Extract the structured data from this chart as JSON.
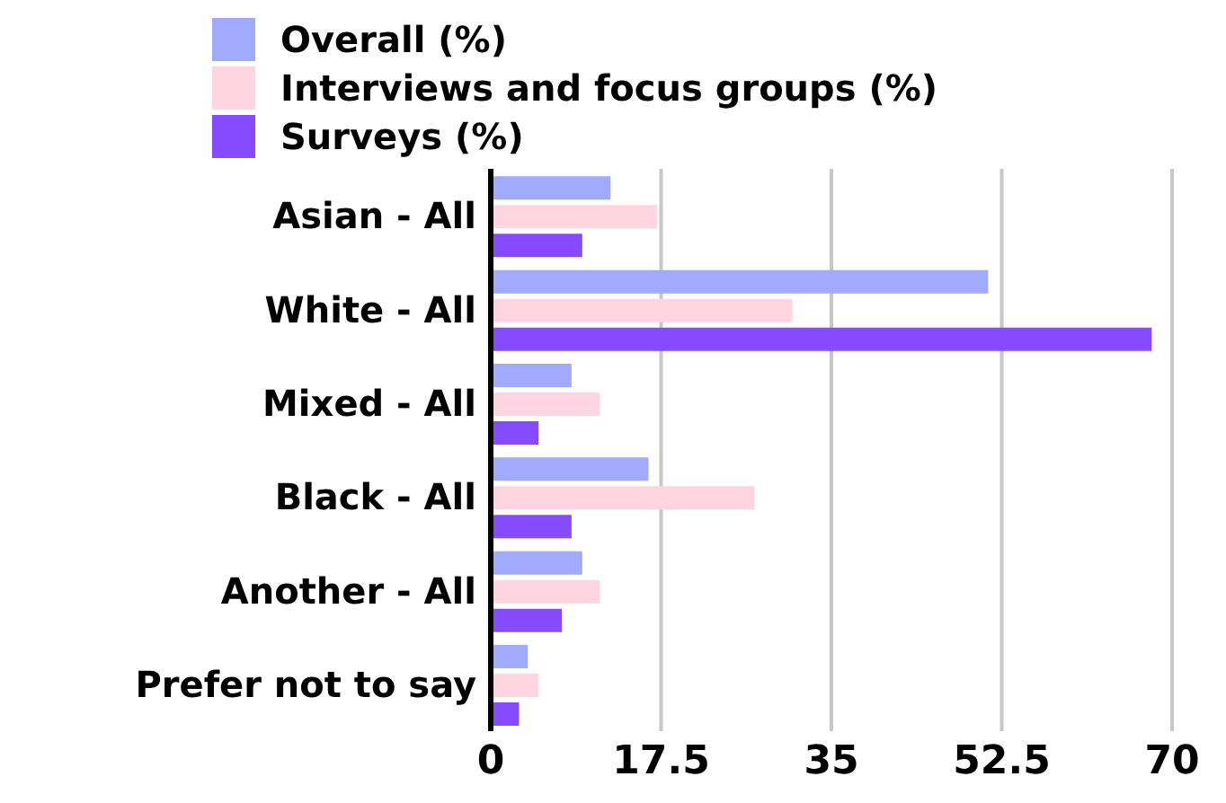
{
  "chart_data": {
    "type": "bar",
    "orientation": "horizontal",
    "categories": [
      "Asian - All",
      "White - All",
      "Mixed - All",
      "Black - All",
      "Another - All",
      "Prefer not to say"
    ],
    "series": [
      {
        "name": "Overall (%)",
        "color": "#a0aaff",
        "values": [
          12.3,
          51.1,
          8.3,
          16.2,
          9.4,
          3.8
        ]
      },
      {
        "name": "Interviews and focus groups (%)",
        "color": "#ffd5e1",
        "values": [
          17.1,
          31.0,
          11.2,
          27.1,
          11.2,
          4.9
        ]
      },
      {
        "name": "Surveys (%)",
        "color": "#874bff",
        "values": [
          9.4,
          67.9,
          4.9,
          8.3,
          7.3,
          2.9
        ]
      }
    ],
    "xlim": [
      0,
      70
    ],
    "xticks": [
      0,
      17.5,
      35,
      52.5,
      70
    ],
    "grid": "x",
    "legend": "top left"
  }
}
